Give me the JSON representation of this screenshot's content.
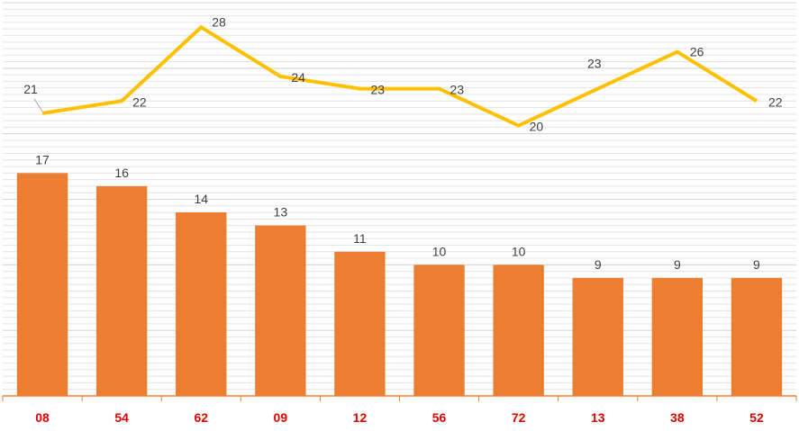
{
  "chart_data": {
    "type": "bar",
    "categories": [
      "08",
      "54",
      "62",
      "09",
      "12",
      "56",
      "72",
      "13",
      "38",
      "52"
    ],
    "series": [
      {
        "type": "bar",
        "values": [
          17,
          16,
          14,
          13,
          11,
          10,
          10,
          9,
          9,
          9
        ]
      },
      {
        "type": "line",
        "values": [
          21,
          22,
          28,
          24,
          23,
          23,
          20,
          23,
          26,
          22
        ]
      }
    ],
    "title": "",
    "xlabel": "",
    "ylabel": "",
    "bar_ylim": [
      0,
      30
    ],
    "line_ylim": [
      -2,
      30
    ],
    "grid": true,
    "colors": {
      "bar": "#ED7D31",
      "line": "#FFC000",
      "tick_label": "#E00000",
      "data_label": "#404040",
      "grid": "#E4E4E4",
      "axis": "#ED7D31"
    }
  }
}
